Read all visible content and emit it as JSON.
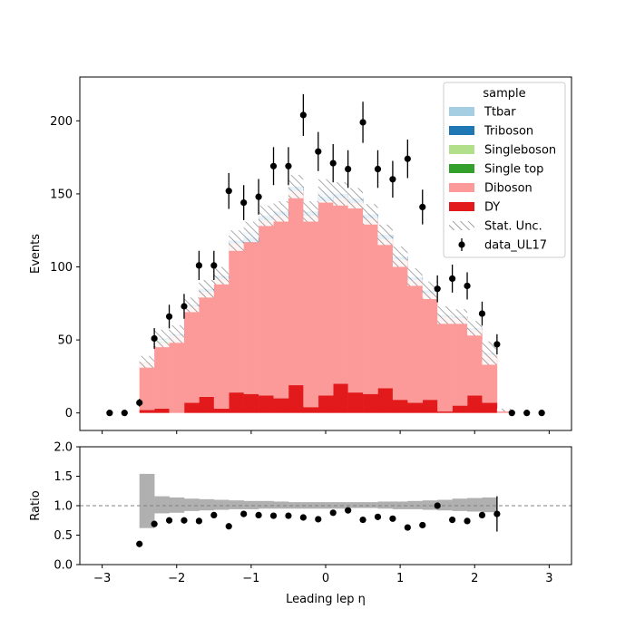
{
  "chart_data": [
    {
      "type": "bar",
      "panel": "main",
      "ylabel": "Events",
      "xlim": [
        -3.3,
        3.3
      ],
      "ylim": [
        -12,
        230
      ],
      "yticks": [
        0,
        50,
        100,
        150,
        200
      ],
      "bin_edges": [
        -2.5,
        -2.3,
        -2.1,
        -1.9,
        -1.7,
        -1.5,
        -1.3,
        -1.1,
        -0.9,
        -0.7,
        -0.5,
        -0.3,
        -0.1,
        0.1,
        0.3,
        0.5,
        0.7,
        0.9,
        1.1,
        1.3,
        1.5,
        1.7,
        1.9,
        2.1,
        2.3,
        2.5
      ],
      "stack_order": [
        "DY",
        "Diboson",
        "Single top",
        "Singleboson",
        "Triboson",
        "Ttbar"
      ],
      "series": [
        {
          "name": "DY",
          "color": "#e31a1c",
          "values": [
            2,
            3,
            0,
            7,
            11,
            3,
            14,
            13,
            12,
            10,
            19,
            4,
            12,
            20,
            14,
            13,
            17,
            9,
            7,
            9,
            1,
            5,
            12,
            7,
            0
          ]
        },
        {
          "name": "Diboson",
          "color": "#fb9a99",
          "values": [
            33,
            45,
            53,
            66,
            72,
            89,
            102,
            104,
            120,
            125,
            133,
            131,
            133,
            127,
            130,
            120,
            102,
            96,
            84,
            73,
            65,
            60,
            45,
            33,
            2
          ]
        },
        {
          "name": "Single top",
          "color": "#33a02c",
          "values": [
            0,
            1,
            0,
            0,
            0,
            0,
            0,
            0,
            0,
            0,
            0,
            0,
            0,
            0,
            0,
            0,
            0,
            0,
            0,
            0,
            0,
            0,
            0,
            0,
            0
          ]
        },
        {
          "name": "Singleboson",
          "color": "#b2df8a",
          "values": [
            0,
            1,
            0,
            0,
            0,
            0,
            0,
            0,
            0,
            0,
            0,
            0,
            0,
            0,
            0,
            0,
            0,
            0,
            0,
            0,
            0,
            0,
            0,
            0,
            0
          ]
        },
        {
          "name": "Triboson",
          "color": "#1f78b4",
          "values": [
            0,
            1,
            1,
            1,
            2,
            2,
            2,
            3,
            3,
            3,
            3,
            3,
            3,
            3,
            3,
            3,
            3,
            2,
            2,
            2,
            1,
            1,
            1,
            1,
            0
          ]
        },
        {
          "name": "Ttbar",
          "color": "#a6cee3",
          "values": [
            0,
            0,
            0,
            0,
            0,
            0,
            0,
            4,
            0,
            0,
            0,
            0,
            4,
            0,
            0,
            0,
            0,
            0,
            0,
            0,
            0,
            0,
            0,
            0,
            0
          ]
        }
      ],
      "stat_unc": {
        "name": "Stat. Unc.",
        "values": [
          4,
          6,
          6,
          5,
          6,
          6,
          7,
          7,
          7,
          7,
          8,
          7,
          8,
          8,
          7,
          7,
          7,
          7,
          6,
          6,
          6,
          5,
          5,
          8,
          1
        ]
      },
      "data_points": {
        "name": "data_UL17",
        "x": [
          -2.9,
          -2.7,
          -2.5,
          -2.3,
          -2.1,
          -1.9,
          -1.7,
          -1.5,
          -1.3,
          -1.1,
          -0.9,
          -0.7,
          -0.5,
          -0.3,
          -0.1,
          0.1,
          0.3,
          0.5,
          0.7,
          0.9,
          1.1,
          1.3,
          1.5,
          1.7,
          1.9,
          2.1,
          2.3,
          2.5,
          2.7,
          2.9
        ],
        "y": [
          0,
          0,
          7,
          51,
          66,
          73,
          101,
          101,
          152,
          144,
          148,
          169,
          169,
          204,
          179,
          171,
          167,
          199,
          167,
          160,
          174,
          141,
          85,
          92,
          87,
          68,
          47,
          0,
          0,
          0
        ],
        "err": [
          0,
          0,
          2.6,
          7.1,
          8.1,
          8.5,
          10,
          10,
          12.3,
          12,
          12.2,
          13,
          13,
          14.3,
          13.4,
          13.1,
          12.9,
          14.1,
          12.9,
          12.6,
          13.2,
          11.9,
          9.2,
          9.6,
          9.3,
          8.2,
          6.9,
          0,
          0,
          0
        ]
      },
      "legend": {
        "title": "sample",
        "position": "upper right",
        "entries": [
          "Ttbar",
          "Triboson",
          "Singleboson",
          "Single top",
          "Diboson",
          "DY",
          "Stat. Unc.",
          "data_UL17"
        ]
      }
    },
    {
      "type": "scatter",
      "panel": "ratio",
      "xlabel": "Leading lep η",
      "ylabel": "Ratio",
      "xlim": [
        -3.3,
        3.3
      ],
      "ylim": [
        0,
        2
      ],
      "yticks": [
        0.0,
        0.5,
        1.0,
        1.5,
        2.0
      ],
      "xticks": [
        -3,
        -2,
        -1,
        0,
        1,
        2,
        3
      ],
      "reference_line": 1.0,
      "unc_band": {
        "low": [
          0.62,
          0.87,
          0.88,
          0.91,
          0.92,
          0.93,
          0.94,
          0.94,
          0.95,
          0.95,
          0.95,
          0.95,
          0.95,
          0.95,
          0.96,
          0.96,
          0.95,
          0.94,
          0.94,
          0.93,
          0.92,
          0.91,
          0.9,
          0.89,
          1.0
        ],
        "high": [
          1.54,
          1.16,
          1.14,
          1.12,
          1.11,
          1.1,
          1.09,
          1.08,
          1.08,
          1.07,
          1.06,
          1.06,
          1.06,
          1.06,
          1.06,
          1.06,
          1.07,
          1.07,
          1.08,
          1.09,
          1.1,
          1.12,
          1.13,
          1.14,
          1.0
        ]
      },
      "points": {
        "x": [
          -2.5,
          -2.3,
          -2.1,
          -1.9,
          -1.7,
          -1.5,
          -1.3,
          -1.1,
          -0.9,
          -0.7,
          -0.5,
          -0.3,
          -0.1,
          0.1,
          0.3,
          0.5,
          0.7,
          0.9,
          1.1,
          1.3,
          1.5,
          1.7,
          1.9,
          2.1,
          2.3
        ],
        "y": [
          0.35,
          0.69,
          0.75,
          0.75,
          0.74,
          0.84,
          0.65,
          0.86,
          0.84,
          0.83,
          0.83,
          0.8,
          0.77,
          0.88,
          0.92,
          0.76,
          0.81,
          0.78,
          0.63,
          0.67,
          1.0,
          0.76,
          0.74,
          0.84,
          0.86
        ],
        "err": [
          0,
          0,
          0,
          0,
          0,
          0,
          0,
          0,
          0,
          0,
          0,
          0,
          0,
          0,
          0,
          0,
          0,
          0,
          0,
          0,
          0,
          0,
          0,
          0,
          0.3
        ]
      }
    }
  ]
}
